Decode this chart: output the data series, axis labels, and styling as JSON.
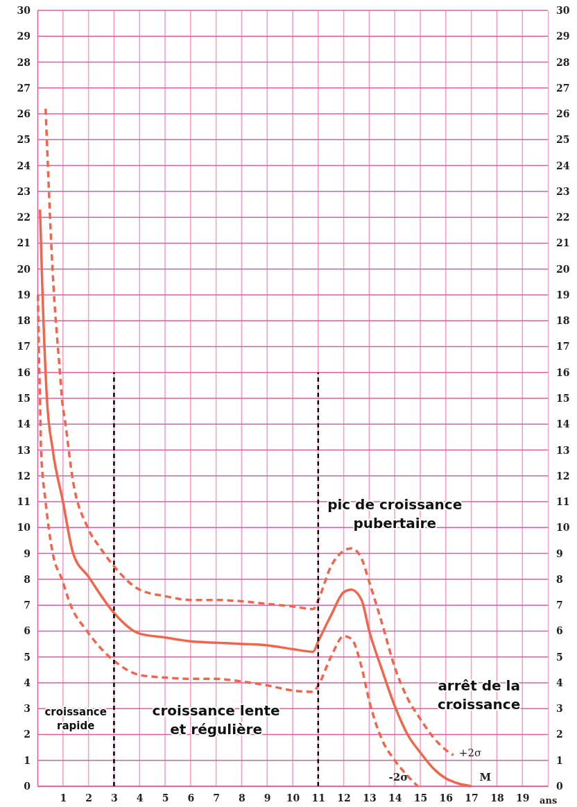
{
  "chart_data": {
    "type": "line",
    "xlabel": "ans",
    "xlim": [
      0,
      20
    ],
    "xticks": [
      1,
      2,
      3,
      4,
      5,
      6,
      7,
      8,
      9,
      10,
      11,
      12,
      13,
      14,
      15,
      16,
      17,
      18,
      19
    ],
    "ylim": [
      0,
      30
    ],
    "yticks": [
      0,
      1,
      2,
      3,
      4,
      5,
      6,
      7,
      8,
      9,
      10,
      11,
      12,
      13,
      14,
      15,
      16,
      17,
      18,
      19,
      20,
      21,
      22,
      23,
      24,
      25,
      26,
      27,
      28,
      29,
      30
    ],
    "y2lim": [
      0,
      30
    ],
    "y2ticks": [
      0,
      1,
      2,
      3,
      4,
      5,
      6,
      7,
      8,
      9,
      10,
      11,
      12,
      13,
      14,
      15,
      16,
      17,
      18,
      19,
      20,
      21,
      22,
      23,
      24,
      25,
      26,
      27,
      28,
      29,
      30
    ],
    "grid": true,
    "series": [
      {
        "name": "+2σ",
        "color": "#f0664c",
        "line_style": "dashed",
        "x": [
          0.32,
          0.59,
          0.88,
          0.96,
          1.1,
          1.36,
          1.97,
          2.47,
          3,
          4,
          5,
          6,
          7,
          8,
          9,
          10,
          10.8,
          11,
          11.5,
          12,
          12.3,
          12.7,
          13,
          13.5,
          14,
          14.5,
          15,
          15.5,
          16,
          16.3
        ],
        "values": [
          26.2,
          20,
          16,
          15,
          14,
          12,
          10,
          9.2,
          8.5,
          7.6,
          7.35,
          7.2,
          7.2,
          7.15,
          7.05,
          6.95,
          6.85,
          7.2,
          8.5,
          9.1,
          9.2,
          8.8,
          7.9,
          6.3,
          4.6,
          3.4,
          2.6,
          1.9,
          1.4,
          1.2
        ]
      },
      {
        "name": "M",
        "color": "#f0664c",
        "line_style": "solid",
        "x": [
          0.1,
          0.2,
          0.37,
          0.6,
          1,
          1.4,
          2,
          3,
          4,
          5,
          6,
          7,
          8,
          9,
          10,
          10.8,
          11,
          11.5,
          12,
          12.3,
          12.7,
          13,
          13.5,
          14,
          14.5,
          15,
          15.5,
          16,
          16.5,
          17
        ],
        "values": [
          22.3,
          19,
          15,
          13,
          11,
          9,
          8.1,
          6.7,
          5.9,
          5.75,
          5.6,
          5.55,
          5.5,
          5.45,
          5.3,
          5.2,
          5.6,
          6.6,
          7.5,
          7.6,
          7.2,
          6,
          4.5,
          3.1,
          2,
          1.3,
          0.7,
          0.3,
          0.1,
          0
        ]
      },
      {
        "name": "-2σ",
        "color": "#f0664c",
        "line_style": "dashed",
        "x": [
          0.02,
          0.05,
          0.1,
          0.14,
          0.32,
          0.6,
          0.96,
          1.3,
          1.94,
          2.82,
          3,
          4,
          5,
          6,
          7,
          8,
          9,
          10,
          10.8,
          11,
          11.5,
          12,
          12.3,
          12.7,
          13,
          13.5,
          14,
          14.5,
          14.9
        ],
        "values": [
          19,
          17,
          15,
          13,
          11,
          9,
          8,
          7,
          6,
          5,
          4.85,
          4.3,
          4.2,
          4.15,
          4.15,
          4.05,
          3.9,
          3.7,
          3.65,
          3.9,
          5,
          5.8,
          5.7,
          4.6,
          3.3,
          1.8,
          1,
          0.4,
          0
        ]
      },
      {
        "color": "#000000",
        "line_style": "dashed",
        "x": [
          3,
          3
        ],
        "values": [
          0,
          16
        ]
      },
      {
        "color": "#000000",
        "line_style": "dashed",
        "x": [
          11,
          11
        ],
        "values": [
          0,
          16
        ]
      }
    ],
    "annotations": [
      "croissance rapide",
      "croissance lente et régulière",
      "pic de croissance pubertaire",
      "arrêt de la croissance"
    ]
  }
}
